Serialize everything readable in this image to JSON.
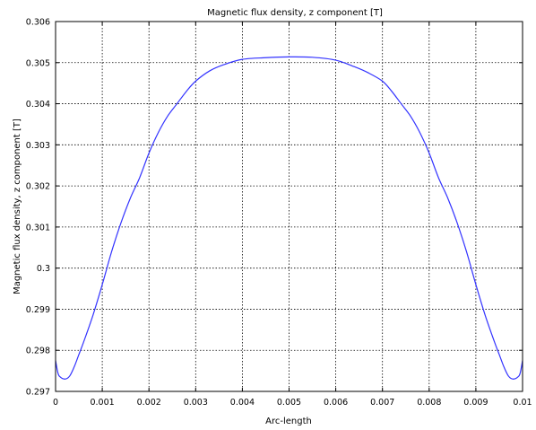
{
  "chart_data": {
    "type": "line",
    "title": "Magnetic flux density, z component [T]",
    "xlabel": "Arc-length",
    "ylabel": "Magnetic flux density, z component [T]",
    "xlim": [
      0,
      0.01
    ],
    "ylim": [
      0.297,
      0.306
    ],
    "grid": true,
    "x_ticks": [
      "0",
      "0.001",
      "0.002",
      "0.003",
      "0.004",
      "0.005",
      "0.006",
      "0.007",
      "0.008",
      "0.009",
      "0.01"
    ],
    "y_ticks": [
      "0.297",
      "0.298",
      "0.299",
      "0.3",
      "0.301",
      "0.302",
      "0.303",
      "0.304",
      "0.305",
      "0.306"
    ],
    "series": [
      {
        "color": "#3333ff",
        "x": [
          0,
          5e-05,
          0.0001,
          0.0002,
          0.0003,
          0.0004,
          0.0005,
          0.0006,
          0.0008,
          0.001,
          0.0012,
          0.0014,
          0.0016,
          0.0018,
          0.002,
          0.0022,
          0.0024,
          0.0026,
          0.0028,
          0.003,
          0.0033,
          0.0036,
          0.004,
          0.0045,
          0.005,
          0.0055,
          0.006,
          0.0064,
          0.0067,
          0.007,
          0.0072,
          0.0074,
          0.0076,
          0.0078,
          0.008,
          0.0082,
          0.0084,
          0.0086,
          0.0088,
          0.009,
          0.0092,
          0.0094,
          0.0095,
          0.0096,
          0.0097,
          0.0098,
          0.0099,
          0.00995,
          0.01
        ],
        "values": [
          0.29775,
          0.29745,
          0.29735,
          0.2973,
          0.29737,
          0.2976,
          0.2979,
          0.2982,
          0.29885,
          0.2996,
          0.3004,
          0.3011,
          0.3017,
          0.3022,
          0.3028,
          0.3033,
          0.3037,
          0.304,
          0.3043,
          0.30455,
          0.3048,
          0.30495,
          0.30508,
          0.30512,
          0.30514,
          0.30513,
          0.30506,
          0.3049,
          0.30475,
          0.30455,
          0.3043,
          0.304,
          0.3037,
          0.3033,
          0.3028,
          0.3022,
          0.3017,
          0.3011,
          0.3004,
          0.2996,
          0.29885,
          0.2982,
          0.2979,
          0.2976,
          0.29737,
          0.2973,
          0.29735,
          0.29745,
          0.29775
        ]
      }
    ]
  }
}
